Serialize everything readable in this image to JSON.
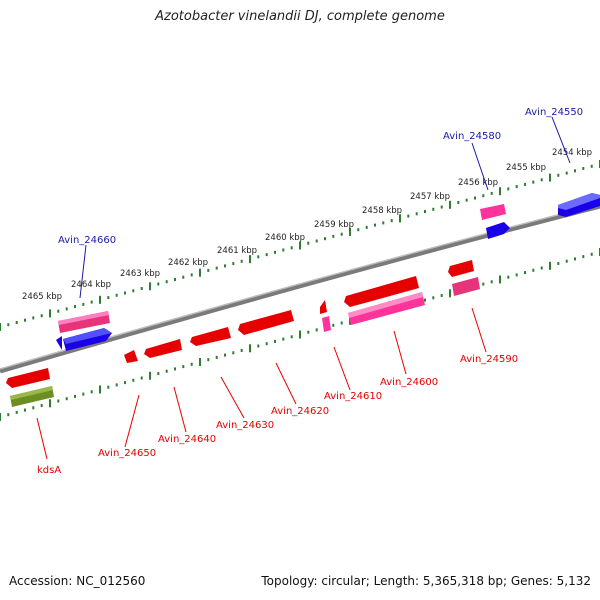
{
  "title": "Azotobacter vinelandii DJ, complete genome",
  "footer": {
    "accession_label": "Accession: NC_012560",
    "summary": "Topology: circular; Length: 5,365,318 bp; Genes: 5,132"
  },
  "colors": {
    "backbone": "#8c8c8c",
    "ticks": "#2e7d32",
    "cds_fwd": "#1a00e6",
    "cds_rev": "#e60000",
    "rna": "#ff3399",
    "trna": "#c2185b",
    "other": "#6b8e23",
    "label_fwd": "#1a1aa6",
    "label_rev": "#e60000"
  },
  "scale_labels": [
    "2454 kbp",
    "2455 kbp",
    "2456 kbp",
    "2457 kbp",
    "2458 kbp",
    "2459 kbp",
    "2460 kbp",
    "2461 kbp",
    "2462 kbp",
    "2463 kbp",
    "2464 kbp",
    "2465 kbp"
  ],
  "gene_labels": {
    "forward": [
      "Avin_24550",
      "Avin_24580",
      "Avin_24660"
    ],
    "reverse": [
      "Avin_24590",
      "Avin_24600",
      "Avin_24610",
      "Avin_24620",
      "Avin_24630",
      "Avin_24640",
      "Avin_24650",
      "kdsA"
    ]
  }
}
